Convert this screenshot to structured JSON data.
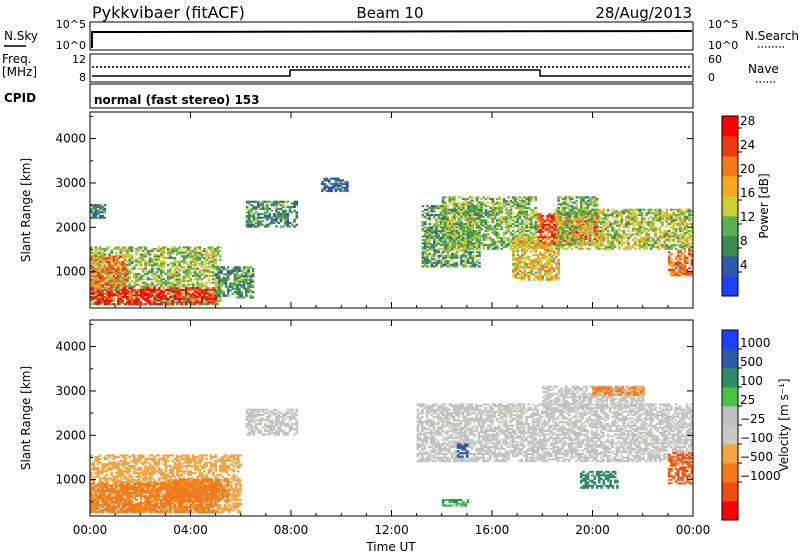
{
  "header": {
    "station": "Pykkvibaer (fitACF)",
    "beam": "Beam 10",
    "date": "28/Aug/2013"
  },
  "strip_nsky": {
    "label": "N.Sky",
    "right_label": "N.Search",
    "ticks_left": [
      "10^5",
      "10^0"
    ],
    "ticks_right": [
      "10^5",
      "10^0"
    ]
  },
  "strip_freq": {
    "label_line1": "Freq.",
    "label_line2": "[MHz]",
    "right_label": "Nave",
    "ticks_left": [
      "12",
      "8"
    ],
    "ticks_right": [
      "60",
      "0"
    ]
  },
  "strip_cpid": {
    "label": "CPID",
    "text": "normal (fast stereo) 153"
  },
  "colors": {
    "power": [
      "#1f3fff",
      "#2e5aa8",
      "#3f8a50",
      "#58b050",
      "#cccc33",
      "#f3aa22",
      "#f27a1a",
      "#ee3a12",
      "#ff0000"
    ],
    "velocity": [
      "#ff0000",
      "#f04a12",
      "#f27a1a",
      "#f4a440",
      "#c9c9c0",
      "#bfbfbf",
      "#46c446",
      "#2f8a6a",
      "#2e5aa8",
      "#1f3fff"
    ]
  },
  "chart_data": [
    {
      "type": "heatmap",
      "name": "Power",
      "ylabel": "Slant Range [km]",
      "ylim": [
        180,
        4600
      ],
      "xlim": [
        0,
        24
      ],
      "y_ticks": [
        1000,
        2000,
        3000,
        4000
      ],
      "colorbar_label": "Power [dB]",
      "colorbar_ticks": [
        "4",
        "8",
        "12",
        "16",
        "20",
        "24",
        "28"
      ],
      "colorbar_range": [
        0,
        30
      ],
      "regions": [
        {
          "t0": 0.0,
          "t1": 5.2,
          "r0": 250,
          "r1": 1550,
          "level": 13
        },
        {
          "t0": 0.0,
          "t1": 5.0,
          "r0": 250,
          "r1": 650,
          "level": 27
        },
        {
          "t0": 0.0,
          "t1": 1.4,
          "r0": 600,
          "r1": 1350,
          "level": 22
        },
        {
          "t0": 5.0,
          "t1": 6.5,
          "r0": 400,
          "r1": 1100,
          "level": 9
        },
        {
          "t0": 0.0,
          "t1": 0.6,
          "r0": 2200,
          "r1": 2500,
          "level": 7
        },
        {
          "t0": 6.2,
          "t1": 8.2,
          "r0": 2000,
          "r1": 2600,
          "level": 9
        },
        {
          "t0": 9.2,
          "t1": 10.2,
          "r0": 2800,
          "r1": 3100,
          "level": 6
        },
        {
          "t0": 13.2,
          "t1": 15.5,
          "r0": 1100,
          "r1": 2500,
          "level": 10
        },
        {
          "t0": 14.0,
          "t1": 17.8,
          "r0": 1500,
          "r1": 2700,
          "level": 12
        },
        {
          "t0": 16.8,
          "t1": 18.6,
          "r0": 800,
          "r1": 1800,
          "level": 17
        },
        {
          "t0": 17.8,
          "t1": 20.2,
          "r0": 1600,
          "r1": 2300,
          "level": 24
        },
        {
          "t0": 18.5,
          "t1": 24.0,
          "r0": 1500,
          "r1": 2400,
          "level": 14
        },
        {
          "t0": 18.6,
          "t1": 20.2,
          "r0": 2300,
          "r1": 2700,
          "level": 11
        },
        {
          "t0": 23.0,
          "t1": 24.0,
          "r0": 900,
          "r1": 1500,
          "level": 22
        }
      ]
    },
    {
      "type": "heatmap",
      "name": "Velocity",
      "ylabel": "Slant Range [km]",
      "xlabel": "Time UT",
      "ylim": [
        180,
        4600
      ],
      "xlim": [
        0,
        24
      ],
      "y_ticks": [
        1000,
        2000,
        3000,
        4000
      ],
      "x_ticks": [
        "00:00",
        "04:00",
        "08:00",
        "12:00",
        "16:00",
        "20:00",
        "00:00"
      ],
      "x_tick_values": [
        0,
        4,
        8,
        12,
        16,
        20,
        24
      ],
      "colorbar_label": "Velocity [m s⁻¹]",
      "colorbar_ticks": [
        "1000",
        "500",
        "100",
        "25",
        "−25",
        "−100",
        "−500",
        "−1000"
      ],
      "regions": [
        {
          "t0": 0.0,
          "t1": 6.0,
          "r0": 250,
          "r1": 1550,
          "level": -40
        },
        {
          "t0": 0.0,
          "t1": 5.0,
          "r0": 250,
          "r1": 900,
          "level": -300
        },
        {
          "t0": 3.0,
          "t1": 5.5,
          "r0": 500,
          "r1": 1000,
          "level": -250
        },
        {
          "t0": 6.2,
          "t1": 8.2,
          "r0": 2000,
          "r1": 2600,
          "level": 0
        },
        {
          "t0": 13.0,
          "t1": 24.0,
          "r0": 1400,
          "r1": 2700,
          "level": 0
        },
        {
          "t0": 18.0,
          "t1": 22.0,
          "r0": 2600,
          "r1": 3100,
          "level": 0
        },
        {
          "t0": 14.6,
          "t1": 15.0,
          "r0": 1500,
          "r1": 1800,
          "level": 800
        },
        {
          "t0": 23.0,
          "t1": 24.0,
          "r0": 900,
          "r1": 1600,
          "level": -500
        },
        {
          "t0": 20.0,
          "t1": 22.0,
          "r0": 2900,
          "r1": 3100,
          "level": -150
        },
        {
          "t0": 19.5,
          "t1": 21.0,
          "r0": 800,
          "r1": 1200,
          "level": 300
        },
        {
          "t0": 14.0,
          "t1": 15.0,
          "r0": 400,
          "r1": 550,
          "level": 120
        }
      ]
    }
  ],
  "axis": {
    "xlabel": "Time UT"
  }
}
